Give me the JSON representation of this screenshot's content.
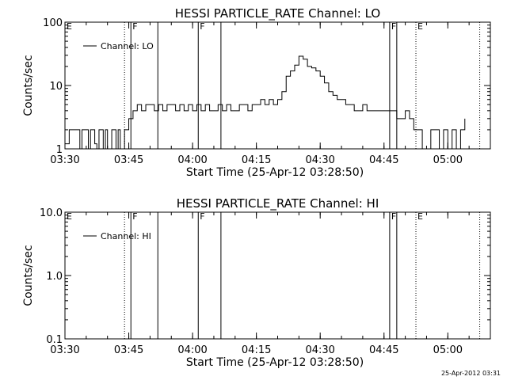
{
  "chart_data": [
    {
      "type": "line",
      "title": "HESSI PARTICLE_RATE Channel: LO",
      "ylabel": "Counts/sec",
      "xlabel": "Start Time (25-Apr-12 03:28:50)",
      "yscale": "log",
      "ylim": [
        1,
        100
      ],
      "ytick_labels": [
        "1",
        "10",
        "100"
      ],
      "ytick_values": [
        1,
        10,
        100
      ],
      "xlim": [
        "03:30",
        "05:10"
      ],
      "xtick_labels": [
        "03:30",
        "03:45",
        "04:00",
        "04:15",
        "04:30",
        "04:45",
        "05:00"
      ],
      "legend": "top-left",
      "series": [
        {
          "name": "Channel: LO",
          "x": [
            "03:30",
            "03:31",
            "03:33",
            "03:33:30",
            "03:34",
            "03:35",
            "03:35:30",
            "03:36",
            "03:37",
            "03:37:30",
            "03:38",
            "03:39",
            "03:39:30",
            "03:40",
            "03:41",
            "03:42",
            "03:42:30",
            "03:43",
            "03:44",
            "03:44:30",
            "03:45",
            "03:46",
            "03:47",
            "03:48",
            "03:49",
            "03:50",
            "03:51",
            "03:52",
            "03:53",
            "03:54",
            "03:55",
            "03:56",
            "03:57",
            "03:58",
            "03:59",
            "04:00",
            "04:01",
            "04:02",
            "04:03",
            "04:04",
            "04:05",
            "04:06",
            "04:07",
            "04:08",
            "04:09",
            "04:10",
            "04:11",
            "04:12",
            "04:13",
            "04:14",
            "04:15",
            "04:16",
            "04:17",
            "04:18",
            "04:19",
            "04:20",
            "04:21",
            "04:22",
            "04:23",
            "04:24",
            "04:25",
            "04:26",
            "04:27",
            "04:28",
            "04:29",
            "04:30",
            "04:31",
            "04:32",
            "04:33",
            "04:34",
            "04:35",
            "04:36",
            "04:37",
            "04:38",
            "04:39",
            "04:40",
            "04:41",
            "04:42",
            "04:43",
            "04:44",
            "04:45",
            "04:46",
            "04:47",
            "04:48",
            "04:49",
            "04:50",
            "04:51",
            "04:52",
            "04:53",
            "04:54",
            "04:55",
            "04:56",
            "04:57",
            "04:58",
            "04:59",
            "05:00",
            "05:01",
            "05:02",
            "05:03",
            "05:04"
          ],
          "y": [
            1.2,
            2,
            2,
            1,
            2,
            2,
            1,
            2,
            1.2,
            1,
            2,
            1,
            2,
            1,
            2,
            1,
            2,
            1,
            2,
            2,
            3,
            4,
            5,
            4,
            5,
            5,
            4,
            5,
            4,
            5,
            5,
            4,
            5,
            4,
            5,
            4,
            5,
            4,
            5,
            4,
            4,
            5,
            4,
            5,
            4,
            4,
            5,
            5,
            4,
            5,
            5,
            6,
            5,
            6,
            5,
            6,
            8,
            14,
            17,
            21,
            29,
            26,
            20,
            19,
            17,
            14,
            11,
            8,
            7,
            6,
            6,
            5,
            5,
            4,
            4,
            5,
            4,
            4,
            4,
            4,
            4,
            4,
            4,
            3,
            3,
            4,
            3,
            2,
            2,
            1,
            1,
            2,
            2,
            1,
            2,
            1,
            2,
            1,
            2,
            3
          ]
        }
      ],
      "markers": [
        {
          "time": "03:44",
          "label": "",
          "style": "dotted"
        },
        {
          "time": "03:45:30",
          "label": "F",
          "style": "solid"
        },
        {
          "time": "03:51:50",
          "label": "",
          "style": "solid"
        },
        {
          "time": "04:01:20",
          "label": "F",
          "style": "solid"
        },
        {
          "time": "04:06:40",
          "label": "",
          "style": "solid"
        },
        {
          "time": "04:46:20",
          "label": "F",
          "style": "solid"
        },
        {
          "time": "04:48",
          "label": "",
          "style": "solid"
        },
        {
          "time": "04:52:30",
          "label": "E",
          "style": "dotted"
        },
        {
          "time": "05:07:30",
          "label": "",
          "style": "dotted"
        }
      ],
      "corner_label": "E"
    },
    {
      "type": "line",
      "title": "HESSI PARTICLE_RATE Channel: HI",
      "ylabel": "Counts/sec",
      "xlabel": "Start Time (25-Apr-12 03:28:50)",
      "yscale": "log",
      "ylim": [
        0.1,
        10
      ],
      "ytick_labels": [
        "0.1",
        "1.0",
        "10.0"
      ],
      "ytick_values": [
        0.1,
        1,
        10
      ],
      "xlim": [
        "03:30",
        "05:10"
      ],
      "xtick_labels": [
        "03:30",
        "03:45",
        "04:00",
        "04:15",
        "04:30",
        "04:45",
        "05:00"
      ],
      "legend": "top-left",
      "series": [
        {
          "name": "Channel: HI",
          "x": [],
          "y": []
        }
      ],
      "markers": [
        {
          "time": "03:44",
          "label": "",
          "style": "dotted"
        },
        {
          "time": "03:45:30",
          "label": "F",
          "style": "solid"
        },
        {
          "time": "03:51:50",
          "label": "",
          "style": "solid"
        },
        {
          "time": "04:01:20",
          "label": "F",
          "style": "solid"
        },
        {
          "time": "04:06:40",
          "label": "",
          "style": "solid"
        },
        {
          "time": "04:46:20",
          "label": "F",
          "style": "solid"
        },
        {
          "time": "04:48",
          "label": "",
          "style": "solid"
        },
        {
          "time": "04:52:30",
          "label": "E",
          "style": "dotted"
        },
        {
          "time": "05:07:30",
          "label": "",
          "style": "dotted"
        }
      ],
      "corner_label": "E"
    }
  ],
  "timestamp": "25-Apr-2012 03:31"
}
